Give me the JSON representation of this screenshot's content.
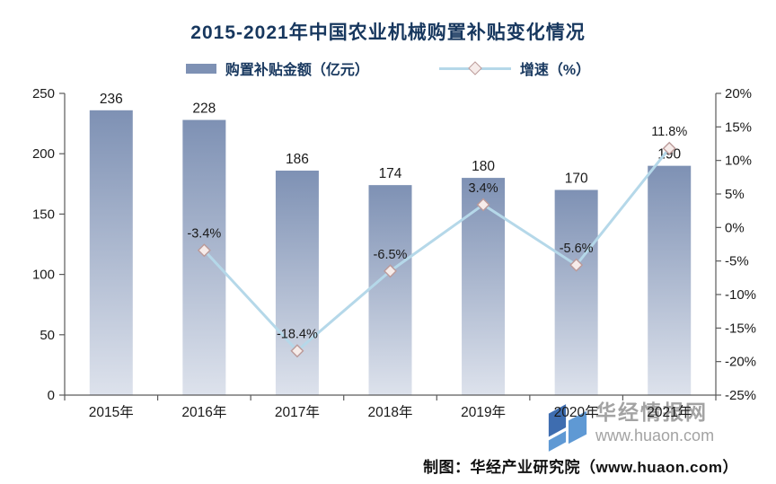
{
  "title": "2015-2021年中国农业机械购置补贴变化情况",
  "legend": {
    "bar_label": "购置补贴金额（亿元）",
    "line_label": "增速（%）"
  },
  "chart_data": {
    "type": "bar+line",
    "title": "2015-2021年中国农业机械购置补贴变化情况",
    "categories": [
      "2015年",
      "2016年",
      "2017年",
      "2018年",
      "2019年",
      "2020年",
      "2021年"
    ],
    "series": [
      {
        "name": "购置补贴金额（亿元）",
        "type": "bar",
        "axis": "left",
        "values": [
          236,
          228,
          186,
          174,
          180,
          170,
          190
        ],
        "labels": [
          "236",
          "228",
          "186",
          "174",
          "180",
          "170",
          "190"
        ]
      },
      {
        "name": "增速（%）",
        "type": "line",
        "axis": "right",
        "values": [
          null,
          -3.4,
          -18.4,
          -6.5,
          3.4,
          -5.6,
          11.8
        ],
        "labels": [
          "",
          "-3.4%",
          "-18.4%",
          "-6.5%",
          "3.4%",
          "-5.6%",
          "11.8%"
        ]
      }
    ],
    "left_axis": {
      "min": 0,
      "max": 250,
      "tick_values": [
        0,
        50,
        100,
        150,
        200,
        250
      ],
      "tick_labels": [
        "0",
        "50",
        "100",
        "150",
        "200",
        "250"
      ]
    },
    "right_axis": {
      "min": -25,
      "max": 20,
      "tick_values": [
        20,
        15,
        10,
        5,
        0,
        -5,
        -10,
        -15,
        -20,
        -25
      ],
      "tick_labels": [
        "20%",
        "15%",
        "10%",
        "5%",
        "0%",
        "-5%",
        "-10%",
        "-15%",
        "-20%",
        "-25%"
      ]
    },
    "legend_position": "top",
    "grid": false
  },
  "footer": {
    "credit": "制图：华经产业研究院（www.huaon.com）"
  },
  "watermark": {
    "name": "华经情报网",
    "url": "www.huaon.com"
  },
  "colors": {
    "title": "#17375e",
    "bar_top": "#7e91b4",
    "bar_bottom": "#dde2ec",
    "line": "#b5d8e9",
    "marker_fill": "#f6ecea",
    "marker_border": "#bb9a99",
    "axis": "#5a5a5a",
    "text": "#1a1a1a",
    "watermark_text": "#a3a3a3",
    "logo_dark_blue": "#2a5ea8",
    "logo_light_blue": "#4e8fd0"
  }
}
